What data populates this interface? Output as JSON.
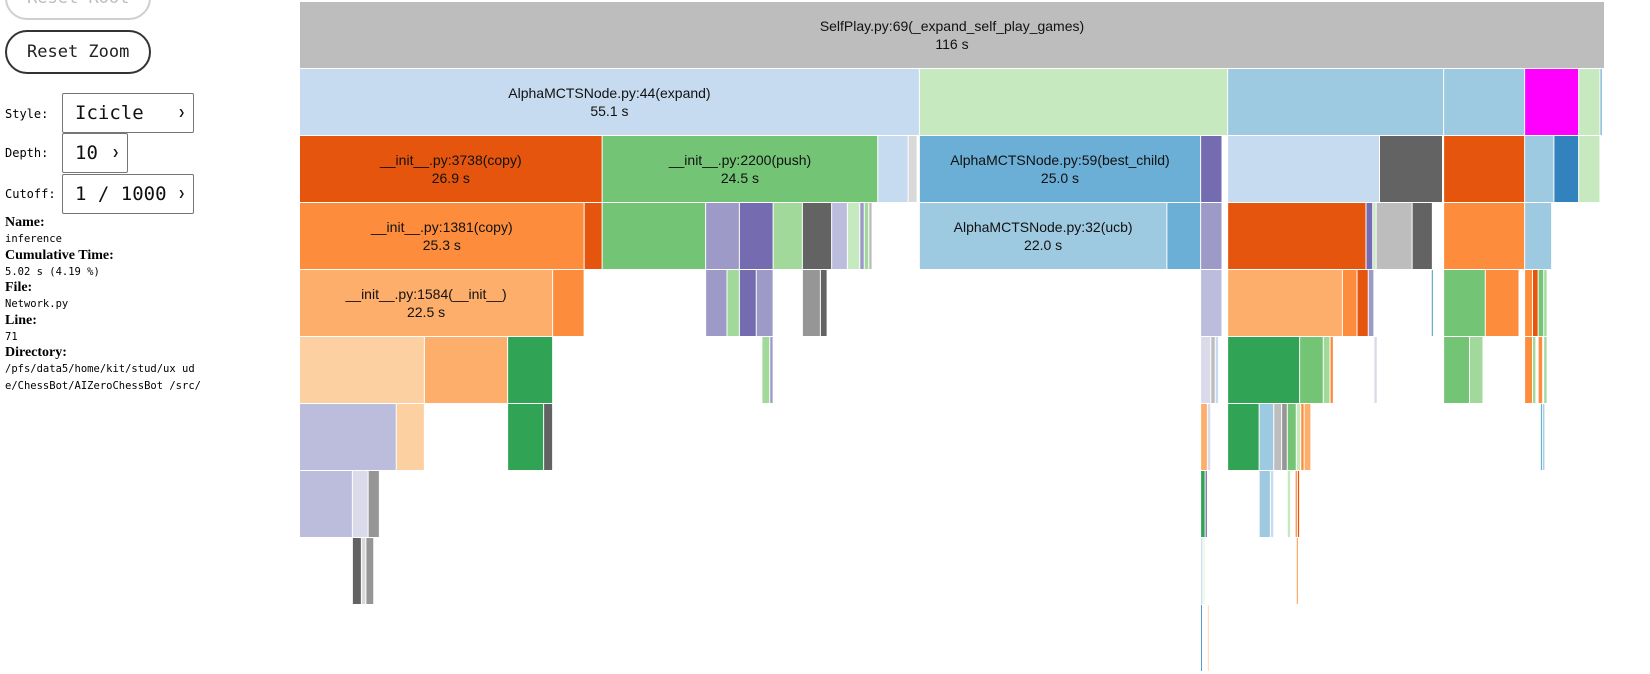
{
  "controls": {
    "reset_root_label": "Reset Root",
    "reset_zoom_label": "Reset Zoom",
    "style_label": "Style:",
    "style_value": "Icicle",
    "depth_label": "Depth:",
    "depth_value": "10",
    "cutoff_label": "Cutoff:",
    "cutoff_value": "1 / 1000"
  },
  "info": {
    "name_key": "Name:",
    "name": "inference",
    "cumtime_key": "Cumulative Time:",
    "cumtime": "5.02 s (4.19 %)",
    "file_key": "File:",
    "file": "Network.py",
    "line_key": "Line:",
    "line": "71",
    "dir_key": "Directory:",
    "directory": "/pfs/data5/home/kit/stud/ux ude/ChessBot/AIZeroChessBot /src/"
  },
  "flame": {
    "total_seconds": 120,
    "frames": [
      {
        "level": 0,
        "start": 0.0,
        "time": 116.0,
        "color": "#bdbdbd",
        "name": "SelfPlay.py:69(_expand_self_play_games)",
        "time_label": "116 s"
      },
      {
        "level": 1,
        "start": 0.0,
        "time": 55.1,
        "color": "#c6dbef",
        "name": "AlphaMCTSNode.py:44(expand)",
        "time_label": "55.1 s"
      },
      {
        "level": 1,
        "start": 55.1,
        "time": 27.4,
        "color": "#c7e9c0"
      },
      {
        "level": 1,
        "start": 82.5,
        "time": 19.2,
        "color": "#9ecae1"
      },
      {
        "level": 1,
        "start": 101.7,
        "time": 7.2,
        "color": "#9ecae1"
      },
      {
        "level": 1,
        "start": 108.9,
        "time": 4.8,
        "color": "#ff00ff"
      },
      {
        "level": 1,
        "start": 113.7,
        "time": 1.9,
        "color": "#c7e9c0"
      },
      {
        "level": 1,
        "start": 115.6,
        "time": 0.2,
        "color": "#6baed6"
      },
      {
        "level": 2,
        "start": 0.0,
        "time": 26.9,
        "color": "#e6550d",
        "name": "__init__.py:3738(copy)",
        "time_label": "26.9 s"
      },
      {
        "level": 2,
        "start": 26.9,
        "time": 24.5,
        "color": "#74c476",
        "name": "__init__.py:2200(push)",
        "time_label": "24.5 s"
      },
      {
        "level": 2,
        "start": 51.4,
        "time": 2.7,
        "color": "#c6dbef"
      },
      {
        "level": 2,
        "start": 54.1,
        "time": 0.8,
        "color": "#d9d9d9"
      },
      {
        "level": 2,
        "start": 55.1,
        "time": 25.0,
        "color": "#6baed6",
        "name": "AlphaMCTSNode.py:59(best_child)",
        "time_label": "25.0 s"
      },
      {
        "level": 2,
        "start": 80.1,
        "time": 1.9,
        "color": "#756bb1"
      },
      {
        "level": 2,
        "start": 82.5,
        "time": 13.5,
        "color": "#c6dbef"
      },
      {
        "level": 2,
        "start": 96.0,
        "time": 5.6,
        "color": "#636363"
      },
      {
        "level": 2,
        "start": 101.7,
        "time": 7.2,
        "color": "#e6550d"
      },
      {
        "level": 2,
        "start": 108.9,
        "time": 2.6,
        "color": "#9ecae1"
      },
      {
        "level": 2,
        "start": 111.5,
        "time": 2.2,
        "color": "#3182bd"
      },
      {
        "level": 2,
        "start": 113.7,
        "time": 1.9,
        "color": "#c7e9c0"
      },
      {
        "level": 3,
        "start": 0.0,
        "time": 25.3,
        "color": "#fd8d3c",
        "name": "__init__.py:1381(copy)",
        "time_label": "25.3 s"
      },
      {
        "level": 3,
        "start": 25.3,
        "time": 1.6,
        "color": "#e6550d"
      },
      {
        "level": 3,
        "start": 26.9,
        "time": 9.2,
        "color": "#74c476"
      },
      {
        "level": 3,
        "start": 36.1,
        "time": 3.0,
        "color": "#9e9ac8"
      },
      {
        "level": 3,
        "start": 39.1,
        "time": 3.0,
        "color": "#756bb1"
      },
      {
        "level": 3,
        "start": 42.1,
        "time": 2.6,
        "color": "#a1d99b"
      },
      {
        "level": 3,
        "start": 44.7,
        "time": 2.6,
        "color": "#636363"
      },
      {
        "level": 3,
        "start": 47.3,
        "time": 1.4,
        "color": "#bcbddc"
      },
      {
        "level": 3,
        "start": 48.7,
        "time": 1.1,
        "color": "#c7e9c0"
      },
      {
        "level": 3,
        "start": 49.8,
        "time": 0.4,
        "color": "#9e9ac8"
      },
      {
        "level": 3,
        "start": 50.2,
        "time": 0.4,
        "color": "#a1d99b"
      },
      {
        "level": 3,
        "start": 50.6,
        "time": 0.3,
        "color": "#bdbdbd"
      },
      {
        "level": 3,
        "start": 55.1,
        "time": 22.0,
        "color": "#9ecae1",
        "name": "AlphaMCTSNode.py:32(ucb)",
        "time_label": "22.0 s"
      },
      {
        "level": 3,
        "start": 77.1,
        "time": 3.0,
        "color": "#6baed6"
      },
      {
        "level": 3,
        "start": 80.1,
        "time": 1.9,
        "color": "#9e9ac8"
      },
      {
        "level": 3,
        "start": 82.5,
        "time": 12.3,
        "color": "#e6550d"
      },
      {
        "level": 3,
        "start": 94.8,
        "time": 0.6,
        "color": "#756bb1"
      },
      {
        "level": 3,
        "start": 95.4,
        "time": 0.3,
        "color": "#c7e9c0"
      },
      {
        "level": 3,
        "start": 95.7,
        "time": 3.2,
        "color": "#bdbdbd"
      },
      {
        "level": 3,
        "start": 98.9,
        "time": 1.8,
        "color": "#636363"
      },
      {
        "level": 3,
        "start": 101.7,
        "time": 7.2,
        "color": "#fd8d3c"
      },
      {
        "level": 3,
        "start": 108.9,
        "time": 2.4,
        "color": "#9ecae1"
      },
      {
        "level": 4,
        "start": 0.0,
        "time": 22.5,
        "color": "#fdae6b",
        "name": "__init__.py:1584(__init__)",
        "time_label": "22.5 s"
      },
      {
        "level": 4,
        "start": 22.5,
        "time": 2.8,
        "color": "#fd8d3c"
      },
      {
        "level": 4,
        "start": 36.1,
        "time": 1.9,
        "color": "#9e9ac8"
      },
      {
        "level": 4,
        "start": 38.0,
        "time": 1.1,
        "color": "#a1d99b"
      },
      {
        "level": 4,
        "start": 39.1,
        "time": 1.5,
        "color": "#756bb1"
      },
      {
        "level": 4,
        "start": 40.6,
        "time": 1.5,
        "color": "#9e9ac8"
      },
      {
        "level": 4,
        "start": 44.7,
        "time": 1.6,
        "color": "#969696"
      },
      {
        "level": 4,
        "start": 46.3,
        "time": 0.6,
        "color": "#636363"
      },
      {
        "level": 4,
        "start": 80.1,
        "time": 1.9,
        "color": "#bcbddc"
      },
      {
        "level": 4,
        "start": 82.5,
        "time": 10.2,
        "color": "#fdae6b"
      },
      {
        "level": 4,
        "start": 92.7,
        "time": 1.3,
        "color": "#fd8d3c"
      },
      {
        "level": 4,
        "start": 94.0,
        "time": 1.0,
        "color": "#e6550d"
      },
      {
        "level": 4,
        "start": 95.0,
        "time": 0.5,
        "color": "#9e9ac8"
      },
      {
        "level": 4,
        "start": 100.6,
        "time": 0.2,
        "color": "#6baed6"
      },
      {
        "level": 4,
        "start": 101.7,
        "time": 3.7,
        "color": "#74c476"
      },
      {
        "level": 4,
        "start": 105.4,
        "time": 3.0,
        "color": "#fd8d3c"
      },
      {
        "level": 4,
        "start": 108.9,
        "time": 0.7,
        "color": "#fd8d3c"
      },
      {
        "level": 4,
        "start": 109.6,
        "time": 0.5,
        "color": "#e6550d"
      },
      {
        "level": 4,
        "start": 110.1,
        "time": 0.5,
        "color": "#74c476"
      },
      {
        "level": 4,
        "start": 110.6,
        "time": 0.3,
        "color": "#a1d99b"
      },
      {
        "level": 5,
        "start": 0.0,
        "time": 11.1,
        "color": "#fdd0a2"
      },
      {
        "level": 5,
        "start": 11.1,
        "time": 7.4,
        "color": "#fdae6b"
      },
      {
        "level": 5,
        "start": 18.5,
        "time": 4.0,
        "color": "#31a354"
      },
      {
        "level": 5,
        "start": 41.1,
        "time": 0.7,
        "color": "#a1d99b"
      },
      {
        "level": 5,
        "start": 41.8,
        "time": 0.3,
        "color": "#9e9ac8"
      },
      {
        "level": 5,
        "start": 80.1,
        "time": 0.9,
        "color": "#dadaeb"
      },
      {
        "level": 5,
        "start": 81.0,
        "time": 0.4,
        "color": "#bdbdbd"
      },
      {
        "level": 5,
        "start": 81.4,
        "time": 0.3,
        "color": "#c6dbef"
      },
      {
        "level": 5,
        "start": 82.5,
        "time": 6.4,
        "color": "#31a354"
      },
      {
        "level": 5,
        "start": 88.9,
        "time": 2.1,
        "color": "#74c476"
      },
      {
        "level": 5,
        "start": 91.0,
        "time": 0.6,
        "color": "#a1d99b"
      },
      {
        "level": 5,
        "start": 91.6,
        "time": 0.3,
        "color": "#fd8d3c"
      },
      {
        "level": 5,
        "start": 95.5,
        "time": 0.3,
        "color": "#dadaeb"
      },
      {
        "level": 5,
        "start": 101.7,
        "time": 2.3,
        "color": "#74c476"
      },
      {
        "level": 5,
        "start": 104.0,
        "time": 1.2,
        "color": "#a1d99b"
      },
      {
        "level": 5,
        "start": 108.9,
        "time": 0.7,
        "color": "#fd8d3c"
      },
      {
        "level": 5,
        "start": 109.6,
        "time": 0.3,
        "color": "#a1d99b"
      },
      {
        "level": 5,
        "start": 110.1,
        "time": 0.4,
        "color": "#fd8d3c"
      },
      {
        "level": 5,
        "start": 110.6,
        "time": 0.3,
        "color": "#a1d99b"
      },
      {
        "level": 6,
        "start": 0.0,
        "time": 8.6,
        "color": "#bcbddc"
      },
      {
        "level": 6,
        "start": 8.6,
        "time": 2.5,
        "color": "#fdd0a2"
      },
      {
        "level": 6,
        "start": 18.5,
        "time": 3.2,
        "color": "#31a354"
      },
      {
        "level": 6,
        "start": 21.7,
        "time": 0.8,
        "color": "#636363"
      },
      {
        "level": 6,
        "start": 80.1,
        "time": 0.6,
        "color": "#fdae6b"
      },
      {
        "level": 6,
        "start": 80.7,
        "time": 0.3,
        "color": "#dadaeb"
      },
      {
        "level": 6,
        "start": 82.5,
        "time": 2.8,
        "color": "#31a354"
      },
      {
        "level": 6,
        "start": 85.3,
        "time": 1.3,
        "color": "#9ecae1"
      },
      {
        "level": 6,
        "start": 86.6,
        "time": 0.7,
        "color": "#bdbdbd"
      },
      {
        "level": 6,
        "start": 87.3,
        "time": 0.5,
        "color": "#969696"
      },
      {
        "level": 6,
        "start": 87.8,
        "time": 0.8,
        "color": "#74c476"
      },
      {
        "level": 6,
        "start": 88.6,
        "time": 0.4,
        "color": "#c7e9c0"
      },
      {
        "level": 6,
        "start": 89.0,
        "time": 0.3,
        "color": "#fd8d3c"
      },
      {
        "level": 6,
        "start": 89.3,
        "time": 0.6,
        "color": "#fdae6b"
      },
      {
        "level": 6,
        "start": 110.3,
        "time": 0.2,
        "color": "#6baed6"
      },
      {
        "level": 6,
        "start": 110.5,
        "time": 0.2,
        "color": "#9ecae1"
      },
      {
        "level": 7,
        "start": 0.0,
        "time": 4.7,
        "color": "#bcbddc"
      },
      {
        "level": 7,
        "start": 4.7,
        "time": 1.4,
        "color": "#dadaeb"
      },
      {
        "level": 7,
        "start": 6.1,
        "time": 1.0,
        "color": "#969696"
      },
      {
        "level": 7,
        "start": 80.1,
        "time": 0.4,
        "color": "#31a354"
      },
      {
        "level": 7,
        "start": 80.5,
        "time": 0.2,
        "color": "#756bb1"
      },
      {
        "level": 7,
        "start": 85.3,
        "time": 1.0,
        "color": "#9ecae1"
      },
      {
        "level": 7,
        "start": 86.3,
        "time": 0.3,
        "color": "#c6dbef"
      },
      {
        "level": 7,
        "start": 87.8,
        "time": 0.3,
        "color": "#c7e9c0"
      },
      {
        "level": 7,
        "start": 88.5,
        "time": 0.2,
        "color": "#fd8d3c"
      },
      {
        "level": 7,
        "start": 88.7,
        "time": 0.2,
        "color": "#e6550d"
      },
      {
        "level": 8,
        "start": 4.7,
        "time": 0.8,
        "color": "#636363"
      },
      {
        "level": 8,
        "start": 5.5,
        "time": 0.4,
        "color": "#d9d9d9"
      },
      {
        "level": 8,
        "start": 5.9,
        "time": 0.7,
        "color": "#969696"
      },
      {
        "level": 8,
        "start": 80.1,
        "time": 0.2,
        "color": "#c6dbef"
      },
      {
        "level": 8,
        "start": 80.3,
        "time": 0.2,
        "color": "#e5f5e0"
      },
      {
        "level": 8,
        "start": 88.6,
        "time": 0.2,
        "color": "#fdae6b"
      },
      {
        "level": 9,
        "start": 80.1,
        "time": 0.1,
        "color": "#3182bd"
      },
      {
        "level": 9,
        "start": 80.7,
        "time": 0.1,
        "color": "#fdd0a2"
      }
    ]
  }
}
